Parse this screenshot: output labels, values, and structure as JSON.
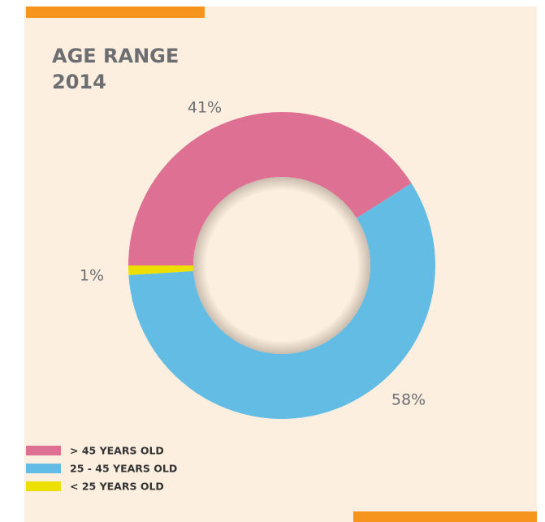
{
  "chart_data": {
    "type": "pie",
    "title": "AGE RANGE",
    "subtitle": "2014",
    "categories": [
      "> 45 YEARS OLD",
      "25 - 45 YEARS OLD",
      "< 25 YEARS OLD"
    ],
    "values": [
      41,
      58,
      1
    ],
    "value_labels": [
      "41%",
      "58%",
      "1%"
    ],
    "colors": [
      "#de7093",
      "#63bce3",
      "#ede000"
    ],
    "donut": true,
    "legend": "bottom-left"
  }
}
